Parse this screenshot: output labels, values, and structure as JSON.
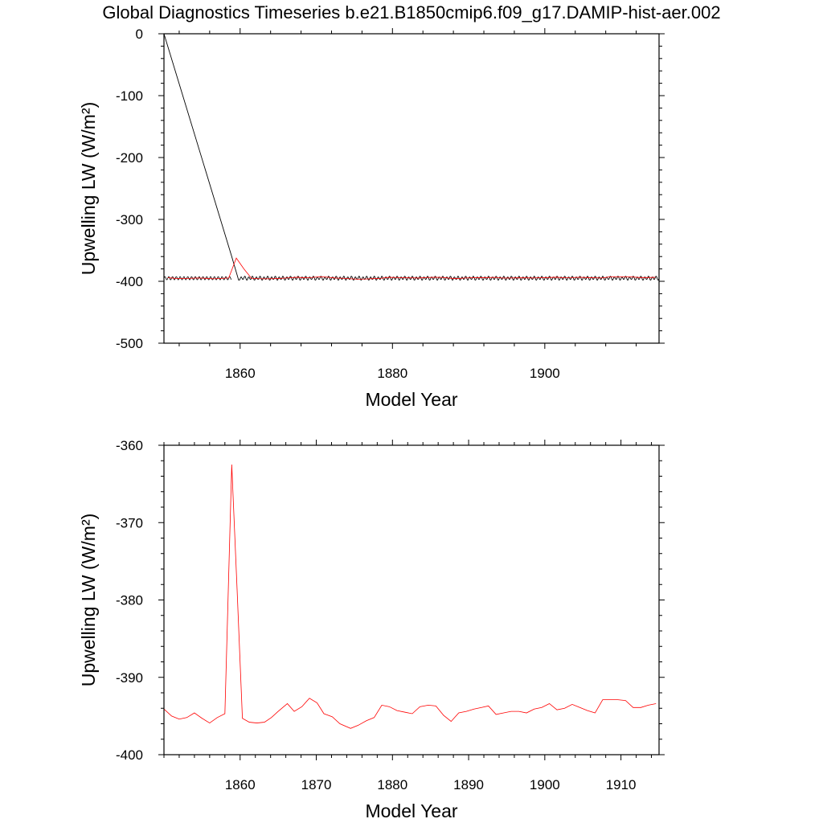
{
  "title": "Global Diagnostics Timeseries b.e21.B1850cmip6.f09_g17.DAMIP-hist-aer.002",
  "chart_data": [
    {
      "type": "line",
      "xlabel": "Model Year",
      "ylabel": "Upwelling LW (W/m²)",
      "xlim": [
        1850,
        1915
      ],
      "ylim": [
        -500,
        0
      ],
      "xticks": [
        1860,
        1880,
        1900
      ],
      "xtick_labels": [
        "1860",
        "1880",
        "1900"
      ],
      "yticks": [
        0,
        -100,
        -200,
        -300,
        -400,
        -500
      ],
      "ytick_labels": [
        "0",
        "-100",
        "-200",
        "-300",
        "-400",
        "-500"
      ],
      "grid": false,
      "series": [
        {
          "color": "#000000",
          "style": "monthly",
          "start": [
            1850,
            0
          ],
          "spike": [
            1858.9,
            -360
          ],
          "dip": [
            1859.8,
            -398
          ],
          "baseline": -395,
          "seasonal_amplitude": 3
        },
        {
          "color": "#ff0000",
          "style": "annual",
          "x": [
            1850.5,
            1851.5,
            1852.5,
            1853.5,
            1854.5,
            1855.5,
            1856.5,
            1857.5,
            1858.5,
            1859.5,
            1860.5,
            1861.5,
            1862.5,
            1863.5,
            1864.5,
            1865.5,
            1866.5,
            1867.5,
            1868.5,
            1869.5,
            1870.5,
            1871.5,
            1872.5,
            1873.5,
            1874.5,
            1875.5,
            1876.5,
            1877.5,
            1878.5,
            1879.5,
            1880.5,
            1881.5,
            1882.5,
            1883.5,
            1884.5,
            1885.5,
            1886.5,
            1887.5,
            1888.5,
            1889.5,
            1890.5,
            1891.5,
            1892.5,
            1893.5,
            1894.5,
            1895.5,
            1896.5,
            1897.5,
            1898.5,
            1899.5,
            1900.5,
            1901.5,
            1902.5,
            1903.5,
            1904.5,
            1905.5,
            1906.5,
            1907.5,
            1908.5,
            1909.5,
            1910.5,
            1911.5,
            1912.5,
            1913.5,
            1914.5
          ],
          "y": [
            -394.2,
            -395.2,
            -395.5,
            -395.1,
            -394.6,
            -395.2,
            -395.9,
            -395.3,
            -394.7,
            -362.5,
            -380,
            -395.3,
            -395.8,
            -395.9,
            -395.7,
            -395.1,
            -394.3,
            -393.4,
            -394.4,
            -393.7,
            -392.7,
            -393.3,
            -394.7,
            -395.1,
            -395.9,
            -396.6,
            -396.3,
            -395.7,
            -395.1,
            -393.6,
            -393.8,
            -394.3,
            -394.5,
            -394.7,
            -393.8,
            -393.6,
            -393.7,
            -394.9,
            -395.7,
            -394.6,
            -394.3,
            -394.1,
            -393.9,
            -393.7,
            -394.8,
            -394.6,
            -394.4,
            -394.4,
            -394.6,
            -394.2,
            -393.9,
            -393.4,
            -394.2,
            -394.0,
            -393.5,
            -393.9,
            -394.3,
            -394.6,
            -392.9,
            -392.9,
            -392.9,
            -393.0,
            -393.9,
            -393.9,
            -393.6
          ]
        }
      ]
    },
    {
      "type": "line",
      "xlabel": "Model Year",
      "ylabel": "Upwelling LW (W/m²)",
      "xlim": [
        1850,
        1915
      ],
      "ylim": [
        -400,
        -360
      ],
      "xticks": [
        1860,
        1870,
        1880,
        1890,
        1900,
        1910
      ],
      "xtick_labels": [
        "1860",
        "1870",
        "1880",
        "1890",
        "1900",
        "1910"
      ],
      "yticks": [
        -360,
        -370,
        -380,
        -390,
        -400
      ],
      "ytick_labels": [
        "-360",
        "-370",
        "-380",
        "-390",
        "-400"
      ],
      "grid": false,
      "series": [
        {
          "color": "#ff0000",
          "x": [
            1850.0,
            1851.0,
            1852.0,
            1853.0,
            1854.0,
            1855.0,
            1856.0,
            1857.0,
            1858.0,
            1858.9,
            1859.6,
            1860.3,
            1861.2,
            1862.2,
            1863.2,
            1864.1,
            1865.0,
            1866.2,
            1867.1,
            1868.1,
            1869.1,
            1870.1,
            1871.0,
            1872.1,
            1873.1,
            1874.5,
            1875.5,
            1876.6,
            1877.6,
            1878.6,
            1879.6,
            1880.6,
            1881.6,
            1882.6,
            1883.6,
            1884.7,
            1885.7,
            1886.7,
            1887.7,
            1888.7,
            1889.7,
            1890.7,
            1891.7,
            1892.6,
            1893.6,
            1894.6,
            1895.6,
            1896.6,
            1897.6,
            1898.6,
            1899.6,
            1900.6,
            1901.6,
            1902.6,
            1903.6,
            1904.6,
            1905.6,
            1906.6,
            1907.6,
            1908.6,
            1909.6,
            1910.6,
            1911.6,
            1912.6,
            1913.6,
            1914.6
          ],
          "y": [
            -394.1,
            -395.0,
            -395.4,
            -395.2,
            -394.6,
            -395.3,
            -395.9,
            -395.2,
            -394.7,
            -362.5,
            -378.6,
            -395.3,
            -395.8,
            -395.9,
            -395.8,
            -395.2,
            -394.4,
            -393.4,
            -394.4,
            -393.8,
            -392.7,
            -393.3,
            -394.7,
            -395.1,
            -396.0,
            -396.6,
            -396.2,
            -395.6,
            -395.2,
            -393.6,
            -393.8,
            -394.3,
            -394.5,
            -394.7,
            -393.8,
            -393.6,
            -393.7,
            -394.9,
            -395.7,
            -394.6,
            -394.4,
            -394.1,
            -393.9,
            -393.7,
            -394.8,
            -394.6,
            -394.4,
            -394.4,
            -394.6,
            -394.1,
            -393.9,
            -393.4,
            -394.2,
            -394.0,
            -393.5,
            -393.9,
            -394.3,
            -394.6,
            -392.9,
            -392.9,
            -392.9,
            -393.0,
            -393.9,
            -393.9,
            -393.6,
            -393.4
          ]
        }
      ]
    }
  ]
}
